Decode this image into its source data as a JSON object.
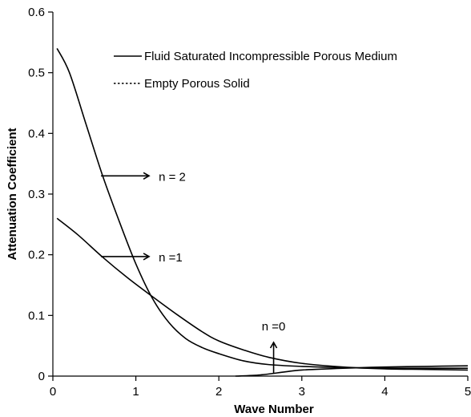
{
  "chart_data": {
    "type": "line",
    "title": "",
    "xlabel": "Wave Number",
    "ylabel": "Attenuation Coefficient",
    "xlim": [
      0,
      5
    ],
    "ylim": [
      0,
      0.6
    ],
    "x_ticks": [
      "0",
      "1",
      "2",
      "3",
      "4",
      "5"
    ],
    "y_ticks": [
      "0",
      "0.1",
      "0.2",
      "0.3",
      "0.4",
      "0.5",
      "0.6"
    ],
    "grid": false,
    "legend": {
      "placement": "top-right",
      "entries": [
        {
          "label": "Fluid Saturated Incompressible Porous Medium",
          "style": "solid"
        },
        {
          "label": "Empty Porous Solid",
          "style": "dotted"
        }
      ]
    },
    "series": [
      {
        "style": "solid",
        "x": [
          0.05,
          0.3,
          0.6,
          0.9,
          1.2,
          1.5,
          1.8,
          2.0,
          2.3,
          2.6,
          3.0,
          3.5,
          4.0,
          4.5,
          5.0
        ],
        "y": [
          0.26,
          0.233,
          0.196,
          0.162,
          0.131,
          0.101,
          0.073,
          0.058,
          0.043,
          0.031,
          0.021,
          0.015,
          0.012,
          0.011,
          0.01
        ]
      },
      {
        "style": "solid",
        "x": [
          0.05,
          0.2,
          0.4,
          0.6,
          0.8,
          1.0,
          1.2,
          1.4,
          1.6,
          1.8,
          2.0,
          2.3,
          2.6,
          3.0,
          3.5,
          4.0,
          4.5,
          5.0
        ],
        "y": [
          0.54,
          0.5,
          0.415,
          0.33,
          0.255,
          0.185,
          0.128,
          0.088,
          0.062,
          0.047,
          0.037,
          0.025,
          0.019,
          0.016,
          0.014,
          0.013,
          0.013,
          0.013
        ]
      },
      {
        "style": "solid",
        "x": [
          2.2,
          2.5,
          2.8,
          3.0,
          3.5,
          4.0,
          4.5,
          5.0
        ],
        "y": [
          0.0,
          0.002,
          0.007,
          0.01,
          0.013,
          0.015,
          0.016,
          0.017
        ]
      }
    ],
    "annotations": [
      {
        "text": "n = 2",
        "arrow": "right",
        "x": 0.58,
        "y": 0.33
      },
      {
        "text": "n =1",
        "arrow": "right",
        "x": 0.58,
        "y": 0.197
      },
      {
        "text": "n =0",
        "arrow": "up",
        "x": 2.66,
        "y": 0.0
      }
    ]
  }
}
